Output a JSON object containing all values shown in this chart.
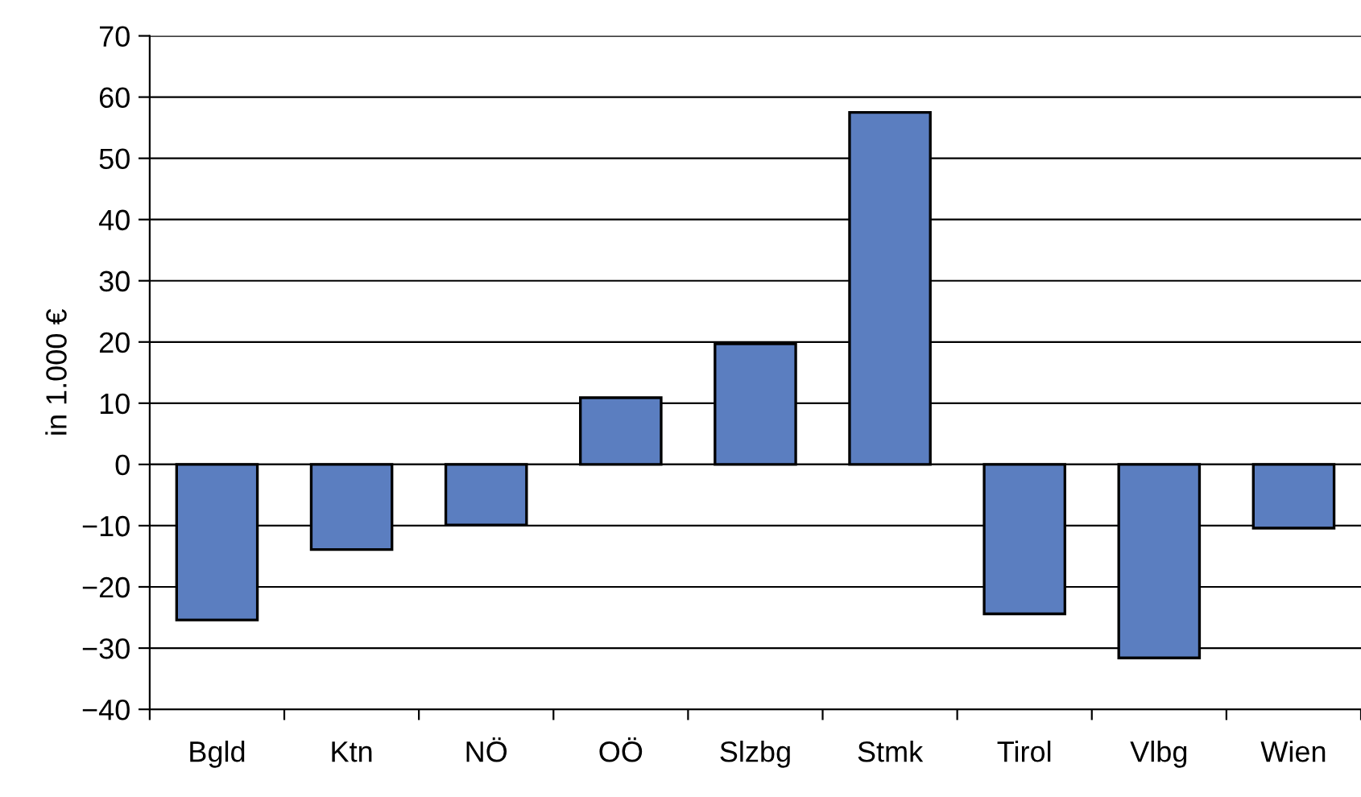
{
  "chart_data": {
    "type": "bar",
    "ylabel": "in 1.000 €",
    "categories": [
      "Bgld",
      "Ktn",
      "NÖ",
      "OÖ",
      "Slzbg",
      "Stmk",
      "Tirol",
      "Vlbg",
      "Wien"
    ],
    "values": [
      -25.4,
      -13.9,
      -9.9,
      10.9,
      19.7,
      57.5,
      -24.4,
      -31.6,
      -10.4
    ],
    "color": "#5b7ec0",
    "ylim": [
      -40,
      70
    ],
    "yticks": [
      -40,
      -30,
      -20,
      -10,
      0,
      10,
      20,
      30,
      40,
      50,
      60,
      70
    ],
    "grid": "y"
  }
}
